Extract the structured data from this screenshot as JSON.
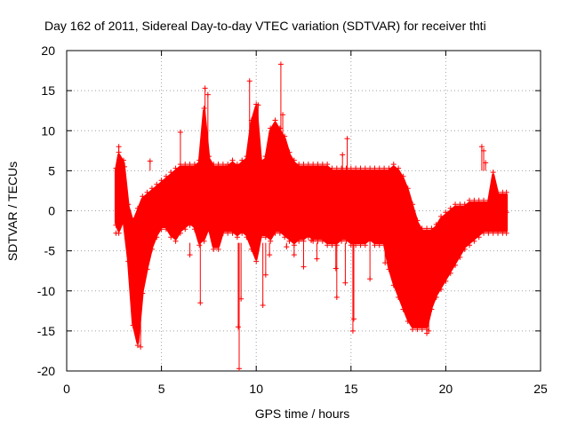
{
  "chart_data": {
    "type": "scatter",
    "title": "Day 162 of 2011, Sidereal Day-to-day VTEC variation (SDTVAR) for receiver thti",
    "xlabel": "GPS time / hours",
    "ylabel": "SDTVAR / TECUs",
    "xlim": [
      0,
      25
    ],
    "ylim": [
      -20,
      20
    ],
    "x_ticks": [
      "0",
      "5",
      "10",
      "15",
      "20",
      "25"
    ],
    "y_ticks": [
      "-20",
      "-15",
      "-10",
      "-5",
      "0",
      "5",
      "10",
      "15",
      "20"
    ],
    "grid": true,
    "marker": "+",
    "color": "#ff0000",
    "band_description": "dense scatter of SDTVAR values; upper/lower envelope sampled every 0.25 h",
    "upper_envelope": {
      "x": [
        2.6,
        2.75,
        3.0,
        3.25,
        3.5,
        3.75,
        4.0,
        4.25,
        4.5,
        4.75,
        5.0,
        5.25,
        5.5,
        5.75,
        6.0,
        6.25,
        6.5,
        6.75,
        7.0,
        7.25,
        7.5,
        7.75,
        8.0,
        8.25,
        8.5,
        8.75,
        9.0,
        9.25,
        9.5,
        9.75,
        10.0,
        10.25,
        10.5,
        10.75,
        11.0,
        11.25,
        11.5,
        11.75,
        12.0,
        12.25,
        12.5,
        12.75,
        13.0,
        13.25,
        13.5,
        13.75,
        14.0,
        14.25,
        14.5,
        14.75,
        15.0,
        15.25,
        15.5,
        15.75,
        16.0,
        16.25,
        16.5,
        16.75,
        17.0,
        17.25,
        17.5,
        17.75,
        18.0,
        18.25,
        18.5,
        18.75,
        19.0,
        19.25,
        19.5,
        19.75,
        20.0,
        20.25,
        20.5,
        20.75,
        21.0,
        21.25,
        21.5,
        21.75,
        22.0,
        22.25,
        22.5,
        22.75,
        23.0,
        23.2
      ],
      "y": [
        5.0,
        7.0,
        6.0,
        0.5,
        -1.5,
        0.0,
        1.5,
        2.0,
        2.5,
        3.0,
        3.5,
        4.0,
        4.5,
        5.0,
        5.5,
        5.5,
        5.5,
        5.5,
        6.0,
        12.5,
        6.5,
        5.5,
        5.5,
        5.5,
        5.5,
        6.0,
        5.5,
        6.0,
        6.5,
        11.0,
        13.0,
        6.0,
        6.5,
        10.0,
        11.0,
        10.0,
        9.0,
        7.0,
        6.0,
        5.5,
        5.5,
        5.5,
        5.5,
        5.5,
        5.5,
        5.5,
        5.0,
        5.0,
        5.0,
        5.0,
        5.0,
        5.0,
        5.0,
        5.0,
        5.0,
        5.0,
        5.0,
        5.0,
        5.0,
        5.5,
        5.0,
        4.0,
        2.5,
        0.5,
        -1.5,
        -2.5,
        -2.5,
        -2.5,
        -2.0,
        -1.0,
        -0.5,
        0.0,
        0.5,
        0.5,
        0.5,
        1.0,
        1.0,
        1.0,
        1.0,
        1.0,
        4.5,
        2.0,
        2.0,
        2.0
      ]
    },
    "lower_envelope": {
      "y": [
        -1.5,
        -2.5,
        -1.0,
        -6.0,
        -14.0,
        -16.5,
        -10.0,
        -7.0,
        -4.5,
        -3.0,
        -2.0,
        -2.0,
        -3.0,
        -3.5,
        -2.5,
        -2.0,
        -1.5,
        -2.0,
        -4.0,
        -3.5,
        -2.0,
        -4.5,
        -4.5,
        -2.5,
        -2.5,
        -2.5,
        -3.0,
        -2.5,
        -3.0,
        -4.5,
        -6.0,
        -3.0,
        -3.0,
        -3.5,
        -2.5,
        -2.5,
        -3.0,
        -3.5,
        -4.0,
        -3.5,
        -3.5,
        -3.0,
        -3.5,
        -3.5,
        -3.5,
        -4.0,
        -4.0,
        -4.0,
        -3.5,
        -3.5,
        -4.0,
        -4.0,
        -4.0,
        -4.0,
        -3.5,
        -4.0,
        -4.0,
        -4.0,
        -7.0,
        -9.0,
        -10.5,
        -12.0,
        -13.5,
        -14.5,
        -14.5,
        -14.5,
        -14.5,
        -12.0,
        -10.5,
        -9.5,
        -8.5,
        -7.5,
        -6.5,
        -5.5,
        -4.5,
        -4.0,
        -3.5,
        -3.0,
        -2.5,
        -2.5,
        -2.5,
        -2.5,
        -2.5,
        -2.5
      ]
    },
    "outlier_points": [
      {
        "x": 2.6,
        "y": -2.8
      },
      {
        "x": 2.75,
        "y": 8.0
      },
      {
        "x": 3.05,
        "y": 5.5
      },
      {
        "x": 3.9,
        "y": -17.0
      },
      {
        "x": 4.4,
        "y": 6.2
      },
      {
        "x": 6.0,
        "y": 9.8
      },
      {
        "x": 6.5,
        "y": -5.5
      },
      {
        "x": 7.05,
        "y": -11.5
      },
      {
        "x": 7.3,
        "y": 15.3
      },
      {
        "x": 7.45,
        "y": 14.5
      },
      {
        "x": 8.4,
        "y": 5.5
      },
      {
        "x": 9.1,
        "y": -19.7
      },
      {
        "x": 9.05,
        "y": -14.5
      },
      {
        "x": 9.2,
        "y": -11.0
      },
      {
        "x": 9.15,
        "y": 4.6
      },
      {
        "x": 9.65,
        "y": 16.2
      },
      {
        "x": 9.85,
        "y": 11.2
      },
      {
        "x": 10.1,
        "y": 13.2
      },
      {
        "x": 10.35,
        "y": -11.8
      },
      {
        "x": 10.5,
        "y": -8.0
      },
      {
        "x": 10.7,
        "y": -5.5
      },
      {
        "x": 11.3,
        "y": 18.3
      },
      {
        "x": 11.4,
        "y": 12.0
      },
      {
        "x": 11.6,
        "y": -4.5
      },
      {
        "x": 12.0,
        "y": -5.5
      },
      {
        "x": 12.5,
        "y": -7.0
      },
      {
        "x": 12.9,
        "y": -3.7
      },
      {
        "x": 13.2,
        "y": -6.0
      },
      {
        "x": 14.2,
        "y": -7.2
      },
      {
        "x": 14.25,
        "y": -10.8
      },
      {
        "x": 14.55,
        "y": 7.0
      },
      {
        "x": 14.8,
        "y": 9.0
      },
      {
        "x": 15.1,
        "y": -15.0
      },
      {
        "x": 15.15,
        "y": -13.5
      },
      {
        "x": 14.7,
        "y": -9.0
      },
      {
        "x": 16.0,
        "y": -8.5
      },
      {
        "x": 16.8,
        "y": -6.5
      },
      {
        "x": 17.6,
        "y": -9.5
      },
      {
        "x": 19.0,
        "y": -15.3
      },
      {
        "x": 19.1,
        "y": -15.0
      },
      {
        "x": 21.9,
        "y": 8.0
      },
      {
        "x": 22.0,
        "y": 7.5
      },
      {
        "x": 22.1,
        "y": 6.0
      },
      {
        "x": 23.2,
        "y": -0.2
      }
    ]
  }
}
